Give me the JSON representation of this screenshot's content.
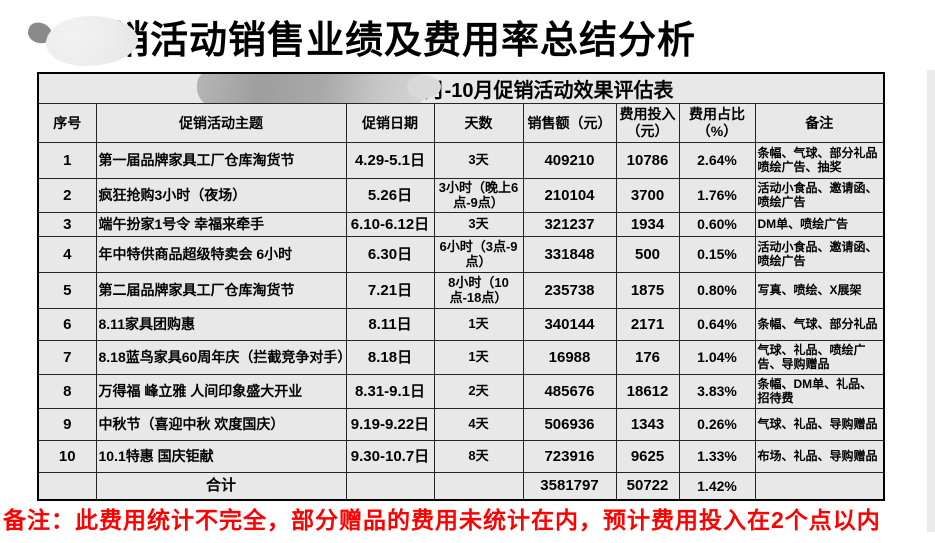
{
  "page": {
    "title": "促销活动销售业绩及费用率总结分析",
    "footnote": "备注：此费用统计不完全，部分赠品的费用未统计在内，预计费用投入在2个点以内",
    "accent_red": "#ff0000",
    "table_bg": "#e8e8e8"
  },
  "table": {
    "title": "4月-10月促销活动效果评估表",
    "headers": [
      "序号",
      "促销活动主题",
      "促销日期",
      "天数",
      "销售额（元）",
      "费用投入（元）",
      "费用占比（%）",
      "备注"
    ],
    "rows": [
      {
        "no": "1",
        "theme": "第一届品牌家具工厂仓库淘货节",
        "date": "4.29-5.1日",
        "days": "3天",
        "sales": "409210",
        "cost": "10786",
        "ratio": "2.64%",
        "remark": "条幅、气球、部分礼品喷绘广告、抽奖"
      },
      {
        "no": "2",
        "theme": "疯狂抢购3小时（夜场）",
        "date": "5.26日",
        "days": "3小时（晚上6点-9点）",
        "sales": "210104",
        "cost": "3700",
        "ratio": "1.76%",
        "remark": "活动小食品、邀请函、喷绘广告"
      },
      {
        "no": "3",
        "theme": "端午扮家1号令 幸福来牵手",
        "date": "6.10-6.12日",
        "days": "3天",
        "sales": "321237",
        "cost": "1934",
        "ratio": "0.60%",
        "remark": "DM单、喷绘广告"
      },
      {
        "no": "4",
        "theme": "年中特供商品超级特卖会 6小时",
        "date": "6.30日",
        "days": "6小时（3点-9点）",
        "sales": "331848",
        "cost": "500",
        "ratio": "0.15%",
        "remark": "活动小食品、邀请函、喷绘广告"
      },
      {
        "no": "5",
        "theme": "第二届品牌家具工厂仓库淘货节",
        "date": "7.21日",
        "days": "8小时（10点-18点）",
        "sales": "235738",
        "cost": "1875",
        "ratio": "0.80%",
        "remark": "写真、喷绘、X展架"
      },
      {
        "no": "6",
        "theme": "8.11家具团购惠",
        "date": "8.11日",
        "days": "1天",
        "sales": "340144",
        "cost": "2171",
        "ratio": "0.64%",
        "remark": "条幅、气球、部分礼品"
      },
      {
        "no": "7",
        "theme": "8.18蓝鸟家具60周年庆（拦截竞争对手）",
        "date": "8.18日",
        "days": "1天",
        "sales": "16988",
        "cost": "176",
        "ratio": "1.04%",
        "remark": "气球、礼品、喷绘广告、导购赠品"
      },
      {
        "no": "8",
        "theme": "万得福 峰立雅 人间印象盛大开业",
        "date": "8.31-9.1日",
        "days": "2天",
        "sales": "485676",
        "cost": "18612",
        "ratio": "3.83%",
        "remark": "条幅、DM单、礼品、招待费"
      },
      {
        "no": "9",
        "theme": "中秋节（喜迎中秋 欢度国庆）",
        "date": "9.19-9.22日",
        "days": "4天",
        "sales": "506936",
        "cost": "1343",
        "ratio": "0.26%",
        "remark": "气球、礼品、导购赠品"
      },
      {
        "no": "10",
        "theme": "10.1特惠 国庆钜献",
        "date": "9.30-10.7日",
        "days": "8天",
        "sales": "723916",
        "cost": "9625",
        "ratio": "1.33%",
        "remark": "布场、礼品、导购赠品"
      }
    ],
    "total": {
      "label": "合计",
      "sales": "3581797",
      "cost": "50722",
      "ratio": "1.42%"
    }
  }
}
